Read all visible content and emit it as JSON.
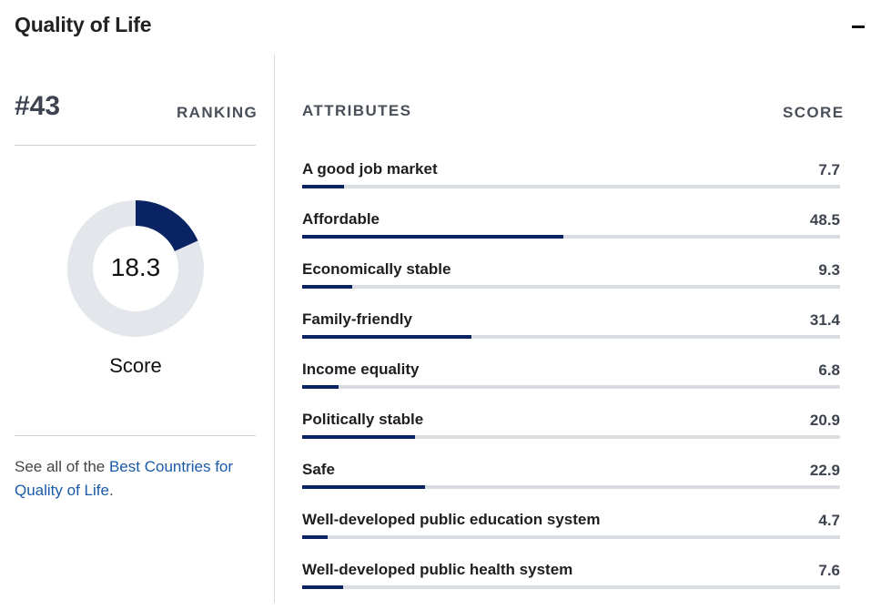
{
  "header": {
    "title": "Quality of Life"
  },
  "summary": {
    "rank": "#43",
    "rank_label": "RANKING",
    "score": "18.3",
    "score_value": 18.3,
    "score_label": "Score",
    "note_prefix": "See all of the ",
    "note_link": "Best Countries for Quality of Life",
    "note_suffix": "."
  },
  "attributes": {
    "header": "ATTRIBUTES",
    "score_header": "SCORE",
    "items": [
      {
        "name": "A good job market",
        "score": "7.7",
        "value": 7.7
      },
      {
        "name": "Affordable",
        "score": "48.5",
        "value": 48.5
      },
      {
        "name": "Economically stable",
        "score": "9.3",
        "value": 9.3
      },
      {
        "name": "Family-friendly",
        "score": "31.4",
        "value": 31.4
      },
      {
        "name": "Income equality",
        "score": "6.8",
        "value": 6.8
      },
      {
        "name": "Politically stable",
        "score": "20.9",
        "value": 20.9
      },
      {
        "name": "Safe",
        "score": "22.9",
        "value": 22.9
      },
      {
        "name": "Well-developed public education system",
        "score": "4.7",
        "value": 4.7
      },
      {
        "name": "Well-developed public health system",
        "score": "7.6",
        "value": 7.6
      }
    ]
  },
  "colors": {
    "accent": "#0a2463",
    "track": "#d9dce1",
    "link": "#1a5aa8"
  }
}
